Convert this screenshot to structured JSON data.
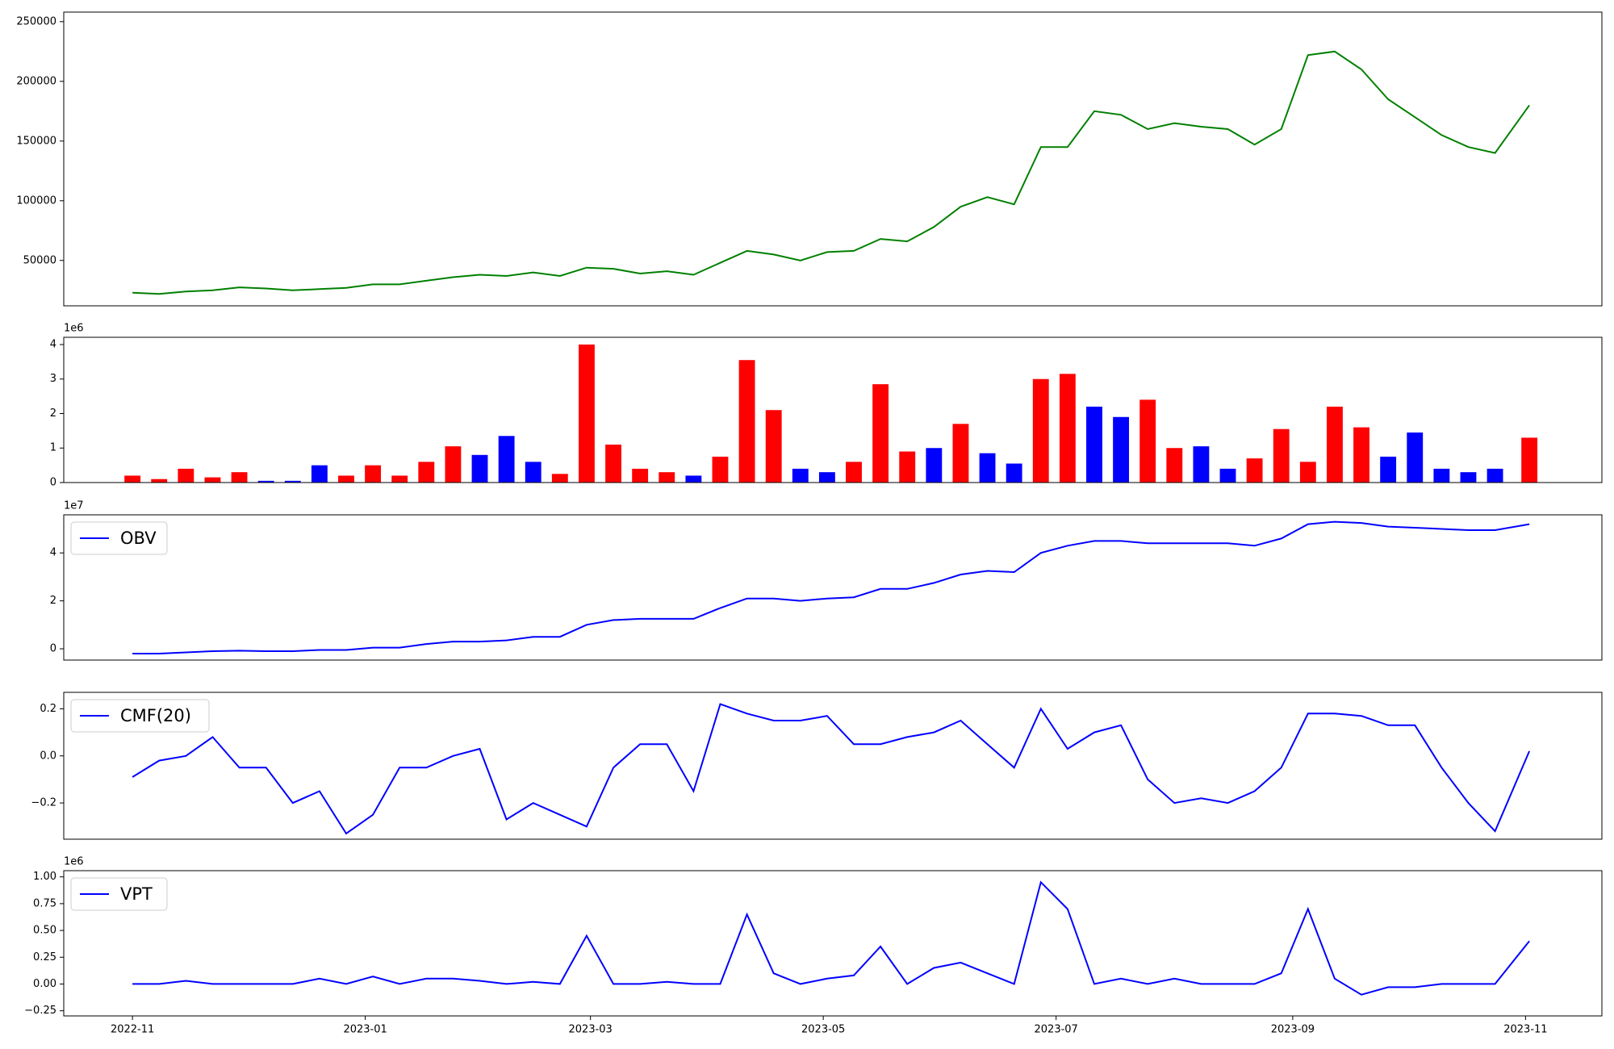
{
  "chart_data": [
    {
      "type": "line",
      "xlim": [
        "2022-10-14",
        "2023-11-21"
      ],
      "ylim": [
        12000,
        258000
      ],
      "yticks": [
        50000,
        100000,
        150000,
        200000,
        250000
      ],
      "x": [
        "2022-11-01",
        "2022-11-08",
        "2022-11-15",
        "2022-11-22",
        "2022-11-29",
        "2022-12-06",
        "2022-12-13",
        "2022-12-20",
        "2022-12-27",
        "2023-01-03",
        "2023-01-10",
        "2023-01-17",
        "2023-01-24",
        "2023-01-31",
        "2023-02-07",
        "2023-02-14",
        "2023-02-21",
        "2023-02-28",
        "2023-03-07",
        "2023-03-14",
        "2023-03-21",
        "2023-03-28",
        "2023-04-04",
        "2023-04-11",
        "2023-04-18",
        "2023-04-25",
        "2023-05-02",
        "2023-05-09",
        "2023-05-16",
        "2023-05-23",
        "2023-05-30",
        "2023-06-06",
        "2023-06-13",
        "2023-06-20",
        "2023-06-27",
        "2023-07-04",
        "2023-07-11",
        "2023-07-18",
        "2023-07-25",
        "2023-08-01",
        "2023-08-08",
        "2023-08-15",
        "2023-08-22",
        "2023-08-29",
        "2023-09-05",
        "2023-09-12",
        "2023-09-19",
        "2023-09-26",
        "2023-10-03",
        "2023-10-10",
        "2023-10-17",
        "2023-10-24",
        "2023-11-02"
      ],
      "series": [
        {
          "color": "#008000",
          "values": [
            23000,
            22000,
            24000,
            25000,
            27500,
            26500,
            25000,
            26000,
            27000,
            30000,
            30000,
            33000,
            36000,
            38000,
            37000,
            40000,
            37000,
            44000,
            43000,
            39000,
            41000,
            38000,
            48000,
            58000,
            55000,
            50000,
            57000,
            58000,
            68000,
            66000,
            78000,
            95000,
            103000,
            97000,
            145000,
            145000,
            175000,
            172000,
            160000,
            165000,
            162000,
            160000,
            147000,
            160000,
            222000,
            225000,
            210000,
            185000,
            170000,
            155000,
            145000,
            140000,
            180000
          ]
        }
      ]
    },
    {
      "type": "bar",
      "xlim": [
        "2022-10-14",
        "2023-11-21"
      ],
      "ylim": [
        0,
        4.21
      ],
      "yticks": [
        0,
        1,
        2,
        3,
        4
      ],
      "y_offset_label": "1e6",
      "x": [
        "2022-11-01",
        "2022-11-08",
        "2022-11-15",
        "2022-11-22",
        "2022-11-29",
        "2022-12-06",
        "2022-12-13",
        "2022-12-20",
        "2022-12-27",
        "2023-01-03",
        "2023-01-10",
        "2023-01-17",
        "2023-01-24",
        "2023-01-31",
        "2023-02-07",
        "2023-02-14",
        "2023-02-21",
        "2023-02-28",
        "2023-03-07",
        "2023-03-14",
        "2023-03-21",
        "2023-03-28",
        "2023-04-04",
        "2023-04-11",
        "2023-04-18",
        "2023-04-25",
        "2023-05-02",
        "2023-05-09",
        "2023-05-16",
        "2023-05-23",
        "2023-05-30",
        "2023-06-06",
        "2023-06-13",
        "2023-06-20",
        "2023-06-27",
        "2023-07-04",
        "2023-07-11",
        "2023-07-18",
        "2023-07-25",
        "2023-08-01",
        "2023-08-08",
        "2023-08-15",
        "2023-08-22",
        "2023-08-29",
        "2023-09-05",
        "2023-09-12",
        "2023-09-19",
        "2023-09-26",
        "2023-10-03",
        "2023-10-10",
        "2023-10-17",
        "2023-10-24",
        "2023-11-02"
      ],
      "series": [
        {
          "values": [
            0.2,
            0.1,
            0.4,
            0.15,
            0.3,
            0.05,
            0.05,
            0.5,
            0.2,
            0.5,
            0.2,
            0.6,
            1.05,
            0.8,
            1.35,
            0.6,
            0.25,
            4.0,
            1.1,
            0.4,
            0.3,
            0.2,
            0.75,
            3.55,
            2.1,
            0.4,
            0.3,
            0.6,
            2.85,
            0.9,
            1.0,
            1.7,
            0.85,
            0.55,
            3.0,
            3.15,
            2.2,
            1.9,
            2.4,
            1.0,
            1.05,
            0.4,
            0.7,
            1.55,
            0.6,
            2.2,
            1.6,
            0.75,
            1.45,
            0.4,
            0.3,
            0.4,
            1.3
          ],
          "colors": [
            "#ff0000",
            "#ff0000",
            "#ff0000",
            "#ff0000",
            "#ff0000",
            "#0000ff",
            "#0000ff",
            "#0000ff",
            "#ff0000",
            "#ff0000",
            "#ff0000",
            "#ff0000",
            "#ff0000",
            "#0000ff",
            "#0000ff",
            "#0000ff",
            "#ff0000",
            "#ff0000",
            "#ff0000",
            "#ff0000",
            "#ff0000",
            "#0000ff",
            "#ff0000",
            "#ff0000",
            "#ff0000",
            "#0000ff",
            "#0000ff",
            "#ff0000",
            "#ff0000",
            "#ff0000",
            "#0000ff",
            "#ff0000",
            "#0000ff",
            "#0000ff",
            "#ff0000",
            "#ff0000",
            "#0000ff",
            "#0000ff",
            "#ff0000",
            "#ff0000",
            "#0000ff",
            "#0000ff",
            "#ff0000",
            "#ff0000",
            "#ff0000",
            "#ff0000",
            "#ff0000",
            "#0000ff",
            "#0000ff",
            "#0000ff",
            "#0000ff",
            "#0000ff",
            "#ff0000"
          ]
        }
      ]
    },
    {
      "type": "line",
      "xlim": [
        "2022-10-14",
        "2023-11-21"
      ],
      "ylim": [
        -0.47,
        5.59
      ],
      "yticks": [
        0,
        2,
        4
      ],
      "y_offset_label": "1e7",
      "legend": "upper left",
      "x": [
        "2022-11-01",
        "2022-11-08",
        "2022-11-15",
        "2022-11-22",
        "2022-11-29",
        "2022-12-06",
        "2022-12-13",
        "2022-12-20",
        "2022-12-27",
        "2023-01-03",
        "2023-01-10",
        "2023-01-17",
        "2023-01-24",
        "2023-01-31",
        "2023-02-07",
        "2023-02-14",
        "2023-02-21",
        "2023-02-28",
        "2023-03-07",
        "2023-03-14",
        "2023-03-21",
        "2023-03-28",
        "2023-04-04",
        "2023-04-11",
        "2023-04-18",
        "2023-04-25",
        "2023-05-02",
        "2023-05-09",
        "2023-05-16",
        "2023-05-23",
        "2023-05-30",
        "2023-06-06",
        "2023-06-13",
        "2023-06-20",
        "2023-06-27",
        "2023-07-04",
        "2023-07-11",
        "2023-07-18",
        "2023-07-25",
        "2023-08-01",
        "2023-08-08",
        "2023-08-15",
        "2023-08-22",
        "2023-08-29",
        "2023-09-05",
        "2023-09-12",
        "2023-09-19",
        "2023-09-26",
        "2023-10-03",
        "2023-10-10",
        "2023-10-17",
        "2023-10-24",
        "2023-11-02"
      ],
      "series": [
        {
          "name": "OBV",
          "color": "#0000ff",
          "values": [
            -0.2,
            -0.2,
            -0.15,
            -0.1,
            -0.08,
            -0.1,
            -0.1,
            -0.05,
            -0.05,
            0.05,
            0.05,
            0.2,
            0.3,
            0.3,
            0.35,
            0.5,
            0.5,
            1.0,
            1.2,
            1.25,
            1.25,
            1.25,
            1.7,
            2.1,
            2.1,
            2.0,
            2.1,
            2.15,
            2.5,
            2.5,
            2.75,
            3.1,
            3.25,
            3.2,
            4.0,
            4.3,
            4.5,
            4.5,
            4.4,
            4.4,
            4.4,
            4.4,
            4.3,
            4.6,
            5.2,
            5.3,
            5.25,
            5.1,
            5.05,
            5.0,
            4.95,
            4.95,
            5.2
          ]
        }
      ]
    },
    {
      "type": "line",
      "xlim": [
        "2022-10-14",
        "2023-11-21"
      ],
      "ylim": [
        -0.354,
        0.27
      ],
      "yticks": [
        {
          "value": -0.2,
          "label": "−0.2"
        },
        {
          "value": 0,
          "label": "0.0"
        },
        {
          "value": 0.2,
          "label": "0.2"
        }
      ],
      "legend": "upper left",
      "x": [
        "2022-11-01",
        "2022-11-08",
        "2022-11-15",
        "2022-11-22",
        "2022-11-29",
        "2022-12-06",
        "2022-12-13",
        "2022-12-20",
        "2022-12-27",
        "2023-01-03",
        "2023-01-10",
        "2023-01-17",
        "2023-01-24",
        "2023-01-31",
        "2023-02-07",
        "2023-02-14",
        "2023-02-21",
        "2023-02-28",
        "2023-03-07",
        "2023-03-14",
        "2023-03-21",
        "2023-03-28",
        "2023-04-04",
        "2023-04-11",
        "2023-04-18",
        "2023-04-25",
        "2023-05-02",
        "2023-05-09",
        "2023-05-16",
        "2023-05-23",
        "2023-05-30",
        "2023-06-06",
        "2023-06-13",
        "2023-06-20",
        "2023-06-27",
        "2023-07-04",
        "2023-07-11",
        "2023-07-18",
        "2023-07-25",
        "2023-08-01",
        "2023-08-08",
        "2023-08-15",
        "2023-08-22",
        "2023-08-29",
        "2023-09-05",
        "2023-09-12",
        "2023-09-19",
        "2023-09-26",
        "2023-10-03",
        "2023-10-10",
        "2023-10-17",
        "2023-10-24",
        "2023-11-02"
      ],
      "series": [
        {
          "name": "CMF(20)",
          "color": "#0000ff",
          "values": [
            -0.09,
            -0.02,
            0.0,
            0.08,
            -0.05,
            -0.05,
            -0.2,
            -0.15,
            -0.33,
            -0.25,
            -0.05,
            -0.05,
            0.0,
            0.03,
            -0.27,
            -0.2,
            -0.25,
            -0.3,
            -0.05,
            0.05,
            0.05,
            -0.15,
            0.22,
            0.18,
            0.15,
            0.15,
            0.17,
            0.05,
            0.05,
            0.08,
            0.1,
            0.15,
            0.05,
            -0.05,
            0.2,
            0.03,
            0.1,
            0.13,
            -0.1,
            -0.2,
            -0.18,
            -0.2,
            -0.15,
            -0.05,
            0.18,
            0.18,
            0.17,
            0.13,
            0.13,
            -0.05,
            -0.2,
            -0.32,
            0.02
          ]
        }
      ]
    },
    {
      "type": "line",
      "xlim": [
        "2022-10-14",
        "2023-11-21"
      ],
      "ylim": [
        -0.298,
        1.058
      ],
      "yticks": [
        {
          "value": -0.25,
          "label": "−0.25"
        },
        {
          "value": 0,
          "label": "0.00"
        },
        {
          "value": 0.25,
          "label": "0.25"
        },
        {
          "value": 0.5,
          "label": "0.50"
        },
        {
          "value": 0.75,
          "label": "0.75"
        },
        {
          "value": 1,
          "label": "1.00"
        }
      ],
      "y_offset_label": "1e6",
      "legend": "upper left",
      "xticks": [
        {
          "value": "2022-11-01",
          "label": "2022-11"
        },
        {
          "value": "2023-01-01",
          "label": "2023-01"
        },
        {
          "value": "2023-03-01",
          "label": "2023-03"
        },
        {
          "value": "2023-05-01",
          "label": "2023-05"
        },
        {
          "value": "2023-07-01",
          "label": "2023-07"
        },
        {
          "value": "2023-09-01",
          "label": "2023-09"
        },
        {
          "value": "2023-11-01",
          "label": "2023-11"
        }
      ],
      "x": [
        "2022-11-01",
        "2022-11-08",
        "2022-11-15",
        "2022-11-22",
        "2022-11-29",
        "2022-12-06",
        "2022-12-13",
        "2022-12-20",
        "2022-12-27",
        "2023-01-03",
        "2023-01-10",
        "2023-01-17",
        "2023-01-24",
        "2023-01-31",
        "2023-02-07",
        "2023-02-14",
        "2023-02-21",
        "2023-02-28",
        "2023-03-07",
        "2023-03-14",
        "2023-03-21",
        "2023-03-28",
        "2023-04-04",
        "2023-04-11",
        "2023-04-18",
        "2023-04-25",
        "2023-05-02",
        "2023-05-09",
        "2023-05-16",
        "2023-05-23",
        "2023-05-30",
        "2023-06-06",
        "2023-06-13",
        "2023-06-20",
        "2023-06-27",
        "2023-07-04",
        "2023-07-11",
        "2023-07-18",
        "2023-07-25",
        "2023-08-01",
        "2023-08-08",
        "2023-08-15",
        "2023-08-22",
        "2023-08-29",
        "2023-09-05",
        "2023-09-12",
        "2023-09-19",
        "2023-09-26",
        "2023-10-03",
        "2023-10-10",
        "2023-10-17",
        "2023-10-24",
        "2023-11-02"
      ],
      "series": [
        {
          "name": "VPT",
          "color": "#0000ff",
          "values": [
            0,
            0,
            0.03,
            0,
            0,
            0,
            0,
            0.05,
            0,
            0.07,
            0,
            0.05,
            0.05,
            0.03,
            0,
            0.02,
            0,
            0.45,
            0,
            0,
            0.02,
            0,
            0,
            0.65,
            0.1,
            0,
            0.05,
            0.08,
            0.35,
            0,
            0.15,
            0.2,
            0.1,
            0,
            0.95,
            0.7,
            0,
            0.05,
            0,
            0.05,
            0,
            0,
            0,
            0.1,
            0.7,
            0.05,
            -0.1,
            -0.03,
            -0.03,
            0,
            0,
            0,
            0.4
          ]
        }
      ]
    }
  ]
}
